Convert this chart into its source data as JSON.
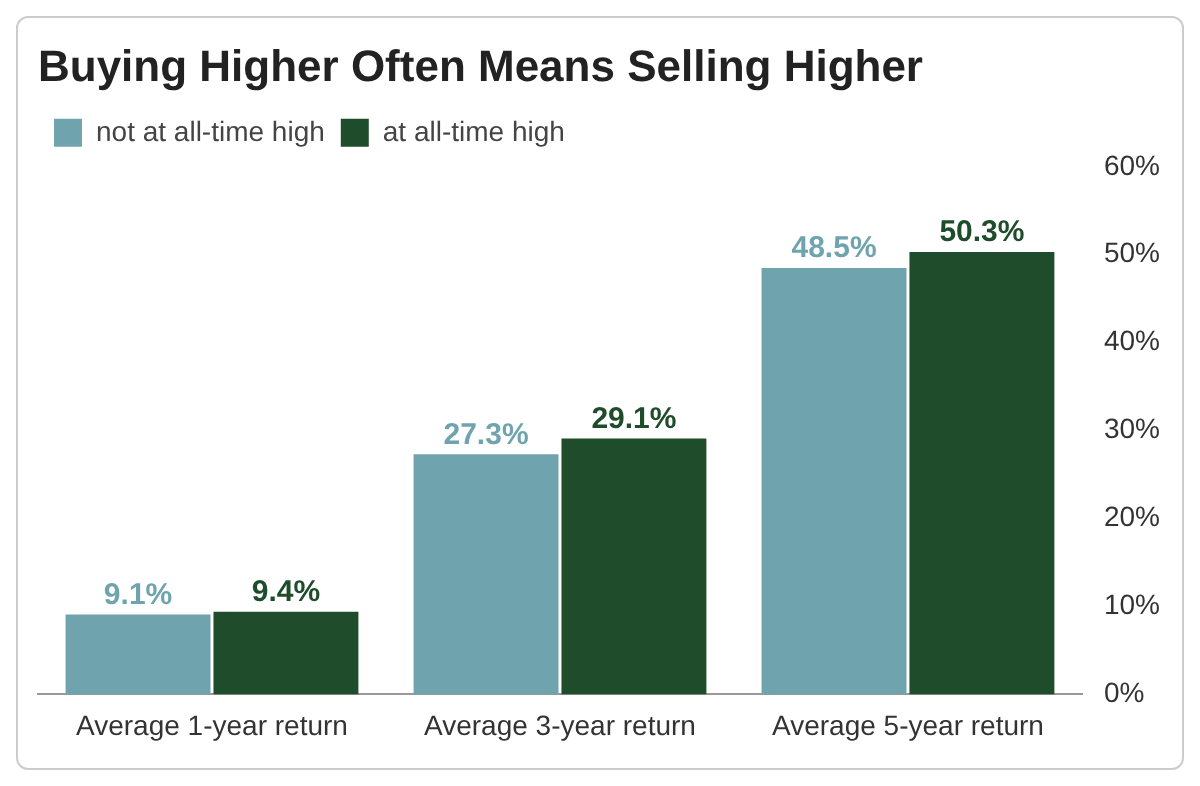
{
  "chart_data": {
    "type": "bar",
    "title": "Buying Higher Often Means Selling Higher",
    "categories": [
      "Average 1-year return",
      "Average 3-year return",
      "Average 5-year return"
    ],
    "series": [
      {
        "name": "not at all-time high",
        "color": "#6fa4ae",
        "values": [
          9.1,
          27.3,
          48.5
        ],
        "value_labels": [
          "9.1%",
          "27.3%",
          "48.5%"
        ]
      },
      {
        "name": "at all-time high",
        "color": "#1f4d2b",
        "values": [
          9.4,
          29.1,
          50.3
        ],
        "value_labels": [
          "9.4%",
          "29.1%",
          "50.3%"
        ]
      }
    ],
    "ylim": [
      0,
      60
    ],
    "yticks": [
      {
        "value": 0,
        "label": "0%"
      },
      {
        "value": 10,
        "label": "10%"
      },
      {
        "value": 20,
        "label": "20%"
      },
      {
        "value": 30,
        "label": "30%"
      },
      {
        "value": 40,
        "label": "40%"
      },
      {
        "value": 50,
        "label": "50%"
      },
      {
        "value": 60,
        "label": "60%"
      }
    ],
    "grid": false,
    "legend": "top left"
  }
}
